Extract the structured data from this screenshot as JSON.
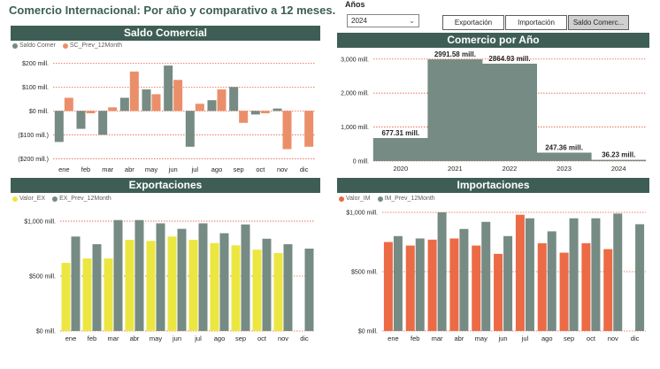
{
  "page_title": "Comercio Internacional: Por año y comparativo a 12 meses.",
  "slicer": {
    "label": "Años",
    "selected": "2024"
  },
  "tabs": [
    {
      "label": "Exportación",
      "active": false
    },
    {
      "label": "Importación",
      "active": false
    },
    {
      "label": "Saldo Comerc...",
      "active": true
    }
  ],
  "colors": {
    "header": "#3e5e55",
    "gray_series": "#758b83",
    "orange_series": "#eb8f6a",
    "yellow_series": "#ece641",
    "red_series": "#ec6a45",
    "grid": "#e45a3f"
  },
  "saldo": {
    "title": "Saldo Comercial",
    "legend": [
      "Saldo Comer",
      "SC_Prev_12Month"
    ]
  },
  "comercio": {
    "title": "Comercio por Año"
  },
  "exportaciones": {
    "title": "Exportaciones",
    "legend": [
      "Valor_EX",
      "EX_Prev_12Month"
    ]
  },
  "importaciones": {
    "title": "Importaciones",
    "legend": [
      "Valor_IM",
      "IM_Prev_12Month"
    ]
  },
  "chart_data": [
    {
      "id": "saldo",
      "type": "bar",
      "title": "Saldo Comercial",
      "categories": [
        "ene",
        "feb",
        "mar",
        "abr",
        "may",
        "jun",
        "jul",
        "ago",
        "sep",
        "oct",
        "nov",
        "dic"
      ],
      "series": [
        {
          "name": "Saldo Comer",
          "color": "#758b83",
          "values": [
            -130,
            -75,
            -100,
            55,
            90,
            190,
            -150,
            45,
            100,
            -15,
            10,
            null
          ]
        },
        {
          "name": "SC_Prev_12Month",
          "color": "#eb8f6a",
          "values": [
            55,
            -10,
            15,
            165,
            70,
            130,
            30,
            90,
            -50,
            -10,
            -160,
            -150
          ]
        }
      ],
      "ylim": [
        -210,
        220
      ],
      "yticks": [
        -200,
        -100,
        0,
        100,
        200
      ],
      "ytick_labels": [
        "($200 mill.)",
        "($100 mill.)",
        "$0 mill.",
        "$100 mill.",
        "$200 mill."
      ],
      "grid": true
    },
    {
      "id": "comercio",
      "type": "bar",
      "title": "Comercio por Año",
      "categories": [
        "2020",
        "2021",
        "2022",
        "2023",
        "2024"
      ],
      "series": [
        {
          "name": "",
          "color": "#758b83",
          "values": [
            677.31,
            2991.58,
            2864.93,
            247.36,
            36.23
          ]
        }
      ],
      "data_labels": [
        "677.31 mill.",
        "2991.58 mill.",
        "2864.93 mill.",
        "247.36 mill.",
        "36.23 mill."
      ],
      "ylim": [
        0,
        3150
      ],
      "yticks": [
        0,
        1000,
        2000,
        3000
      ],
      "ytick_labels": [
        "0 mill.",
        "1,000 mill.",
        "2,000 mill.",
        "3,000 mill."
      ],
      "grid": true
    },
    {
      "id": "exportaciones",
      "type": "bar",
      "title": "Exportaciones",
      "categories": [
        "ene",
        "feb",
        "mar",
        "abr",
        "may",
        "jun",
        "jul",
        "ago",
        "sep",
        "oct",
        "nov",
        "dic"
      ],
      "series": [
        {
          "name": "Valor_EX",
          "color": "#ece641",
          "values": [
            620,
            660,
            660,
            830,
            820,
            860,
            830,
            800,
            780,
            740,
            710,
            null
          ]
        },
        {
          "name": "EX_Prev_12Month",
          "color": "#758b83",
          "values": [
            860,
            790,
            1010,
            1010,
            980,
            930,
            980,
            890,
            970,
            840,
            790,
            750
          ]
        }
      ],
      "ylim": [
        0,
        1080
      ],
      "yticks": [
        0,
        500,
        1000
      ],
      "ytick_labels": [
        "$0 mill.",
        "$500 mill.",
        "$1,000 mill."
      ],
      "grid": true
    },
    {
      "id": "importaciones",
      "type": "bar",
      "title": "Importaciones",
      "categories": [
        "ene",
        "feb",
        "mar",
        "abr",
        "may",
        "jun",
        "jul",
        "ago",
        "sep",
        "oct",
        "nov",
        "dic"
      ],
      "series": [
        {
          "name": "Valor_IM",
          "color": "#ec6a45",
          "values": [
            750,
            720,
            770,
            780,
            720,
            650,
            980,
            740,
            660,
            740,
            690,
            null
          ]
        },
        {
          "name": "IM_Prev_12Month",
          "color": "#758b83",
          "values": [
            800,
            780,
            1000,
            860,
            920,
            800,
            950,
            840,
            950,
            950,
            990,
            900
          ]
        }
      ],
      "ylim": [
        0,
        1000
      ],
      "yticks": [
        0,
        500,
        1000
      ],
      "ytick_labels": [
        "$0 mill.",
        "$500 mill.",
        "$1,000 mill."
      ],
      "grid": true
    }
  ]
}
